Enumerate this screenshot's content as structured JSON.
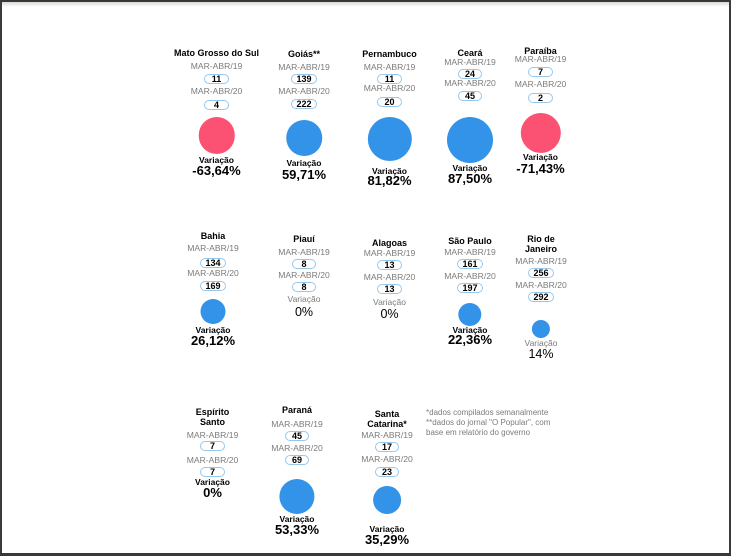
{
  "labels": {
    "period1": "MAR-ABR/19",
    "period2": "MAR-ABR/20",
    "variation": "Variação"
  },
  "states": [
    {
      "id": "ms",
      "name": "Mato Grosso do Sul",
      "v2019": "11",
      "v2020": "4",
      "variation": "-63,64%",
      "bubble": {
        "d": 36.5,
        "color": "#fb5172"
      }
    },
    {
      "id": "go",
      "name": "Goiás**",
      "v2019": "139",
      "v2020": "222",
      "variation": "59,71%",
      "bubble": {
        "d": 35.5,
        "color": "#3293e8"
      }
    },
    {
      "id": "pe",
      "name": "Pernambuco",
      "v2019": "11",
      "v2020": "20",
      "variation": "81,82%",
      "bubble": {
        "d": 44.3,
        "color": "#3293e8"
      }
    },
    {
      "id": "ce",
      "name": "Ceará",
      "v2019": "24",
      "v2020": "45",
      "variation": "87,50%",
      "bubble": {
        "d": 46,
        "color": "#3293e8"
      }
    },
    {
      "id": "pb",
      "name": "Paraíba",
      "v2019": "7",
      "v2020": "2",
      "variation": "-71,43%",
      "bubble": {
        "d": 40.4,
        "color": "#fb5172"
      }
    },
    {
      "id": "ba",
      "name": "Bahia",
      "v2019": "134",
      "v2020": "169",
      "variation": "26,12%",
      "bubble": {
        "d": 25,
        "color": "#3293e8"
      }
    },
    {
      "id": "pi",
      "name": "Piauí",
      "v2019": "8",
      "v2020": "8",
      "variation": "0%",
      "bubble": null
    },
    {
      "id": "al",
      "name": "Alagoas",
      "v2019": "13",
      "v2020": "13",
      "variation": "0%",
      "bubble": null
    },
    {
      "id": "sp",
      "name": "São Paulo",
      "v2019": "161",
      "v2020": "197",
      "variation": "22,36%",
      "bubble": {
        "d": 23.4,
        "color": "#3293e8"
      }
    },
    {
      "id": "rj",
      "name": "Rio de\nJaneiro",
      "v2019": "256",
      "v2020": "292",
      "variation": "14%",
      "bubble": {
        "d": 18.2,
        "color": "#3293e8"
      }
    },
    {
      "id": "es",
      "name": "Espírito\nSanto",
      "v2019": "7",
      "v2020": "7",
      "variation": "0%",
      "bubble": null
    },
    {
      "id": "pr",
      "name": "Paraná",
      "v2019": "45",
      "v2020": "69",
      "variation": "53,33%",
      "bubble": {
        "d": 35.2,
        "color": "#3293e8"
      }
    },
    {
      "id": "sc",
      "name": "Santa\nCatarina*",
      "v2019": "17",
      "v2020": "23",
      "variation": "35,29%",
      "bubble": {
        "d": 27.8,
        "color": "#3293e8"
      }
    }
  ],
  "footnote": {
    "text": "*dados compilados semanalmente\n**dados do jornal \"O Popular\", com\nbase em relatório do governo"
  },
  "colors": {
    "bubble_increase": "#3293e8",
    "bubble_decrease": "#fb5172",
    "pill_border": "#96c8ee",
    "label_gray": "#7b7b7b"
  },
  "chart_data": {
    "type": "bubble",
    "title": "",
    "categories": [
      "Mato Grosso do Sul",
      "Goiás**",
      "Pernambuco",
      "Ceará",
      "Paraíba",
      "Bahia",
      "Piauí",
      "Alagoas",
      "São Paulo",
      "Rio de Janeiro",
      "Espírito Santo",
      "Paraná",
      "Santa Catarina*"
    ],
    "series": [
      {
        "name": "MAR-ABR/19",
        "values": [
          11,
          139,
          11,
          24,
          7,
          134,
          8,
          13,
          161,
          256,
          7,
          45,
          17
        ]
      },
      {
        "name": "MAR-ABR/20",
        "values": [
          4,
          222,
          20,
          45,
          2,
          169,
          8,
          13,
          197,
          292,
          7,
          69,
          23
        ]
      }
    ],
    "variation_percent": [
      -63.64,
      59.71,
      81.82,
      87.5,
      -71.43,
      26.12,
      0,
      0,
      22.36,
      14,
      0,
      53.33,
      35.29
    ],
    "bubble_rule": "bubble diameter proportional to sqrt(|variation|); blue = increase, pink = decrease, no bubble when 0%",
    "legend_position": "none",
    "grid": false,
    "footnotes": [
      "*dados compilados semanalmente",
      "**dados do jornal \"O Popular\", com base em relatório do governo"
    ]
  }
}
